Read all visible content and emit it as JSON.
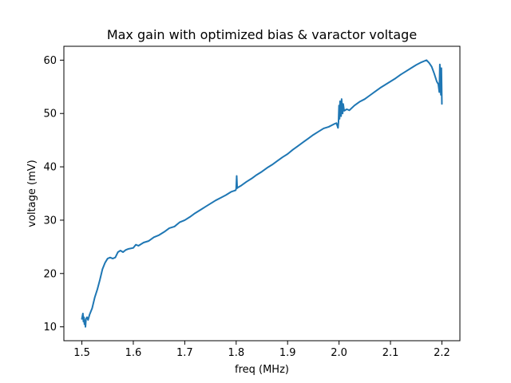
{
  "chart_data": {
    "type": "line",
    "title": "Max gain with optimized bias & varactor voltage",
    "xlabel": "freq (MHz)",
    "ylabel": "voltage (mV)",
    "xlim": [
      1.465,
      2.235
    ],
    "ylim": [
      7.4,
      62.6
    ],
    "xticks": [
      1.5,
      1.6,
      1.7,
      1.8,
      1.9,
      2.0,
      2.1,
      2.2
    ],
    "xtick_labels": [
      "1.5",
      "1.6",
      "1.7",
      "1.8",
      "1.9",
      "2.0",
      "2.1",
      "2.2"
    ],
    "yticks": [
      10,
      20,
      30,
      40,
      50,
      60
    ],
    "ytick_labels": [
      "10",
      "20",
      "30",
      "40",
      "50",
      "60"
    ],
    "grid": false,
    "series": [
      {
        "color": "#1f77b4",
        "x": [
          1.5,
          1.502,
          1.503,
          1.504,
          1.505,
          1.506,
          1.507,
          1.508,
          1.51,
          1.512,
          1.515,
          1.52,
          1.525,
          1.53,
          1.535,
          1.54,
          1.545,
          1.55,
          1.555,
          1.56,
          1.565,
          1.57,
          1.575,
          1.58,
          1.585,
          1.59,
          1.6,
          1.605,
          1.61,
          1.62,
          1.63,
          1.64,
          1.65,
          1.66,
          1.67,
          1.68,
          1.69,
          1.7,
          1.71,
          1.72,
          1.73,
          1.74,
          1.75,
          1.76,
          1.77,
          1.78,
          1.79,
          1.799,
          1.8,
          1.801,
          1.802,
          1.803,
          1.81,
          1.82,
          1.83,
          1.84,
          1.85,
          1.86,
          1.87,
          1.88,
          1.89,
          1.9,
          1.91,
          1.92,
          1.93,
          1.94,
          1.95,
          1.96,
          1.97,
          1.98,
          1.99,
          1.995,
          1.998,
          1.999,
          2.0,
          2.001,
          2.002,
          2.003,
          2.004,
          2.005,
          2.006,
          2.007,
          2.008,
          2.01,
          2.015,
          2.02,
          2.03,
          2.04,
          2.05,
          2.06,
          2.07,
          2.08,
          2.09,
          2.1,
          2.11,
          2.12,
          2.13,
          2.14,
          2.15,
          2.16,
          2.17,
          2.175,
          2.18,
          2.185,
          2.19,
          2.193,
          2.195,
          2.196,
          2.197,
          2.198,
          2.199,
          2.2
        ],
        "y": [
          11.5,
          12.5,
          11.0,
          11.8,
          10.5,
          11.2,
          10.0,
          11.5,
          11.8,
          11.3,
          12.3,
          13.5,
          15.5,
          17.0,
          18.8,
          20.8,
          22.0,
          22.8,
          23.0,
          22.8,
          23.0,
          24.0,
          24.3,
          24.0,
          24.4,
          24.6,
          24.8,
          25.4,
          25.2,
          25.8,
          26.1,
          26.8,
          27.2,
          27.8,
          28.5,
          28.8,
          29.6,
          30.0,
          30.6,
          31.3,
          31.9,
          32.5,
          33.1,
          33.7,
          34.2,
          34.7,
          35.3,
          35.6,
          35.9,
          38.3,
          36.0,
          36.1,
          36.5,
          37.2,
          37.8,
          38.5,
          39.1,
          39.8,
          40.4,
          41.1,
          41.8,
          42.4,
          43.2,
          43.9,
          44.6,
          45.3,
          46.0,
          46.6,
          47.2,
          47.5,
          48.0,
          48.2,
          47.3,
          48.5,
          51.5,
          49.0,
          52.3,
          51.5,
          49.5,
          52.7,
          51.2,
          50.0,
          51.8,
          50.5,
          50.8,
          50.6,
          51.5,
          52.2,
          52.7,
          53.4,
          54.1,
          54.8,
          55.4,
          56.0,
          56.6,
          57.3,
          57.9,
          58.5,
          59.1,
          59.6,
          60.0,
          59.5,
          58.8,
          57.5,
          56.0,
          55.5,
          54.0,
          59.2,
          56.8,
          53.5,
          58.5,
          51.8
        ]
      }
    ]
  }
}
